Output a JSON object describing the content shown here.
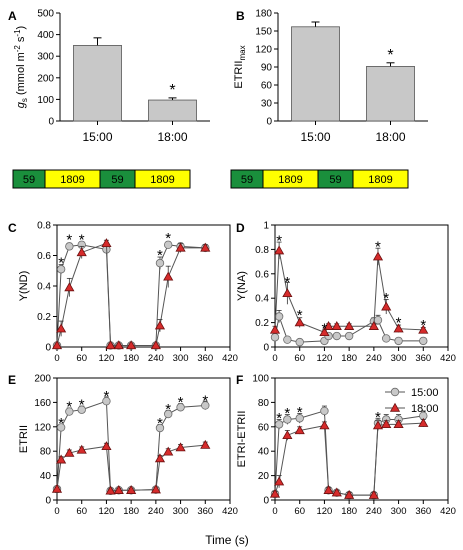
{
  "figure": {
    "x_axis_label": "Time (s)",
    "colors": {
      "gray_bar": "#c8c8c8",
      "series_15": "#c8c8c8",
      "series_18": "#d62b2b",
      "green": "#1a8f3c",
      "yellow": "#ffff00"
    },
    "light_strip": [
      "59",
      "1809",
      "59",
      "1809"
    ]
  },
  "chart_data": [
    {
      "panel": "A",
      "type": "bar",
      "categories": [
        "15:00",
        "18:00"
      ],
      "values": [
        350,
        97
      ],
      "errors": [
        35,
        10
      ],
      "ylabel": "g_s (mmol m-2 s-1)",
      "ylim": [
        0,
        500
      ],
      "yticks": [
        0,
        100,
        200,
        300,
        400,
        500
      ],
      "significance": [
        "",
        "*"
      ]
    },
    {
      "panel": "B",
      "type": "bar",
      "categories": [
        "15:00",
        "18:00"
      ],
      "values": [
        157,
        91
      ],
      "errors": [
        8,
        6
      ],
      "ylabel": "ETRII_max",
      "ylim": [
        0,
        180
      ],
      "yticks": [
        0,
        30,
        60,
        90,
        120,
        150,
        180
      ],
      "significance": [
        "",
        "*"
      ]
    },
    {
      "panel": "C",
      "type": "line",
      "ylabel": "Y(ND)",
      "ylim": [
        0,
        0.8
      ],
      "yticks": [
        0.0,
        0.2,
        0.4,
        0.6,
        0.8
      ],
      "xlim": [
        0,
        420
      ],
      "xticks": [
        0,
        60,
        120,
        180,
        240,
        300,
        360,
        420
      ],
      "x": [
        0,
        10,
        30,
        60,
        120,
        130,
        150,
        180,
        240,
        250,
        270,
        300,
        360
      ],
      "series": [
        {
          "name": "15:00",
          "values": [
            0.01,
            0.51,
            0.66,
            0.67,
            0.64,
            0.01,
            0.01,
            0.01,
            0.01,
            0.55,
            0.67,
            0.66,
            0.65
          ],
          "errors": [
            0.01,
            0.03,
            0.02,
            0.02,
            0.03,
            0.01,
            0.01,
            0.01,
            0.01,
            0.04,
            0.02,
            0.02,
            0.02
          ]
        },
        {
          "name": "18:00",
          "values": [
            0.01,
            0.12,
            0.39,
            0.62,
            0.68,
            0.01,
            0.01,
            0.01,
            0.01,
            0.14,
            0.46,
            0.65,
            0.65
          ],
          "errors": [
            0.01,
            0.05,
            0.06,
            0.04,
            0.02,
            0.01,
            0.01,
            0.01,
            0.01,
            0.04,
            0.07,
            0.03,
            0.02
          ]
        }
      ],
      "significance": [
        {
          "x": 10,
          "y": 0.56
        },
        {
          "x": 30,
          "y": 0.71
        },
        {
          "x": 60,
          "y": 0.71
        },
        {
          "x": 250,
          "y": 0.61
        },
        {
          "x": 270,
          "y": 0.72
        }
      ]
    },
    {
      "panel": "D",
      "type": "line",
      "ylabel": "Y(NA)",
      "ylim": [
        0,
        1.0
      ],
      "yticks": [
        0.0,
        0.2,
        0.4,
        0.6,
        0.8,
        1.0
      ],
      "xlim": [
        0,
        420
      ],
      "xticks": [
        0,
        60,
        120,
        180,
        240,
        300,
        360,
        420
      ],
      "x": [
        0,
        10,
        30,
        60,
        120,
        130,
        150,
        180,
        240,
        250,
        270,
        300,
        360
      ],
      "series": [
        {
          "name": "15:00",
          "values": [
            0.08,
            0.25,
            0.06,
            0.04,
            0.05,
            0.09,
            0.09,
            0.09,
            0.21,
            0.22,
            0.07,
            0.05,
            0.05
          ],
          "errors": [
            0.02,
            0.05,
            0.02,
            0.01,
            0.01,
            0.02,
            0.02,
            0.02,
            0.03,
            0.04,
            0.02,
            0.01,
            0.01
          ]
        },
        {
          "name": "18:00",
          "values": [
            0.14,
            0.79,
            0.44,
            0.2,
            0.12,
            0.17,
            0.17,
            0.17,
            0.17,
            0.74,
            0.33,
            0.15,
            0.14
          ],
          "errors": [
            0.03,
            0.07,
            0.09,
            0.04,
            0.02,
            0.02,
            0.02,
            0.02,
            0.02,
            0.07,
            0.06,
            0.03,
            0.02
          ]
        }
      ],
      "significance": [
        {
          "x": 10,
          "y": 0.88
        },
        {
          "x": 30,
          "y": 0.54
        },
        {
          "x": 60,
          "y": 0.27
        },
        {
          "x": 120,
          "y": 0.16
        },
        {
          "x": 250,
          "y": 0.83
        },
        {
          "x": 270,
          "y": 0.41
        },
        {
          "x": 300,
          "y": 0.21
        },
        {
          "x": 360,
          "y": 0.19
        }
      ]
    },
    {
      "panel": "E",
      "type": "line",
      "ylabel": "ETRII",
      "ylim": [
        0,
        200
      ],
      "yticks": [
        0,
        40,
        80,
        120,
        160,
        200
      ],
      "xlim": [
        0,
        420
      ],
      "xticks": [
        0,
        60,
        120,
        180,
        240,
        300,
        360,
        420
      ],
      "x": [
        0,
        10,
        30,
        60,
        120,
        130,
        150,
        180,
        240,
        250,
        270,
        300,
        360
      ],
      "series": [
        {
          "name": "15:00",
          "values": [
            18,
            119,
            145,
            148,
            162,
            15,
            16,
            16,
            17,
            118,
            141,
            152,
            155
          ],
          "errors": [
            3,
            5,
            6,
            6,
            7,
            3,
            3,
            3,
            3,
            6,
            6,
            6,
            7
          ]
        },
        {
          "name": "18:00",
          "values": [
            18,
            66,
            77,
            82,
            88,
            15,
            16,
            16,
            17,
            68,
            79,
            86,
            90
          ],
          "errors": [
            3,
            5,
            5,
            5,
            5,
            3,
            3,
            3,
            3,
            5,
            5,
            5,
            5
          ]
        }
      ],
      "significance": [
        {
          "x": 10,
          "y": 128
        },
        {
          "x": 30,
          "y": 155
        },
        {
          "x": 60,
          "y": 158
        },
        {
          "x": 120,
          "y": 172
        },
        {
          "x": 250,
          "y": 128
        },
        {
          "x": 270,
          "y": 151
        },
        {
          "x": 300,
          "y": 162
        },
        {
          "x": 360,
          "y": 165
        }
      ]
    },
    {
      "panel": "F",
      "type": "line",
      "ylabel": "ETRI-ETRII",
      "ylim": [
        0,
        100
      ],
      "yticks": [
        0,
        20,
        40,
        60,
        80,
        100
      ],
      "xlim": [
        0,
        420
      ],
      "xticks": [
        0,
        60,
        120,
        180,
        240,
        300,
        360,
        420
      ],
      "x": [
        0,
        10,
        30,
        60,
        120,
        130,
        150,
        180,
        240,
        250,
        270,
        300,
        360
      ],
      "series": [
        {
          "name": "15:00",
          "values": [
            5,
            62,
            66,
            67,
            73,
            8,
            6,
            4,
            4,
            63,
            66,
            66,
            69
          ],
          "errors": [
            2,
            4,
            4,
            4,
            4,
            2,
            2,
            2,
            2,
            4,
            4,
            4,
            4
          ]
        },
        {
          "name": "18:00",
          "values": [
            5,
            15,
            53,
            57,
            61,
            8,
            6,
            4,
            4,
            61,
            62,
            62,
            63
          ],
          "errors": [
            2,
            5,
            4,
            3,
            3,
            2,
            2,
            2,
            2,
            4,
            3,
            3,
            3
          ]
        }
      ],
      "significance": [
        {
          "x": 10,
          "y": 68
        },
        {
          "x": 30,
          "y": 72
        },
        {
          "x": 60,
          "y": 73
        },
        {
          "x": 250,
          "y": 69
        }
      ],
      "legend": [
        "15:00",
        "18:00"
      ]
    }
  ]
}
